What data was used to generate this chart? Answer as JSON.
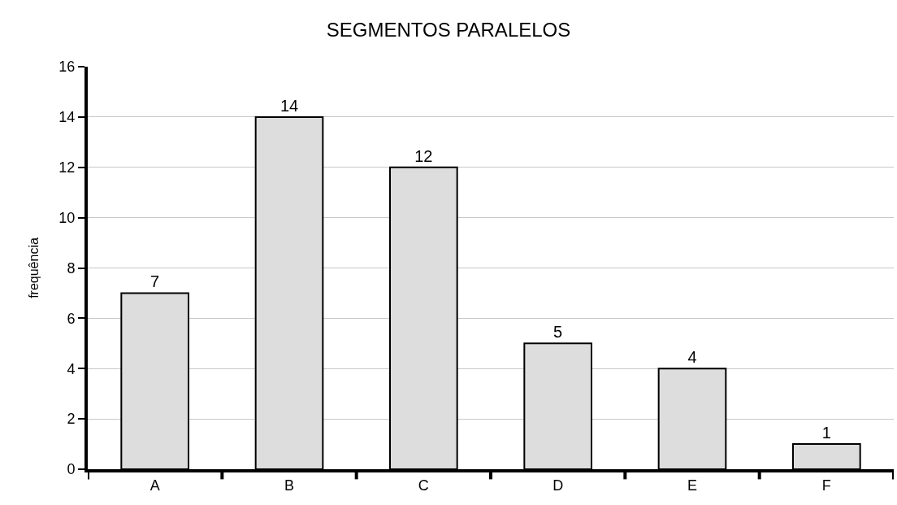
{
  "chart_data": {
    "type": "bar",
    "title": "SEGMENTOS PARALELOS",
    "ylabel": "frequência",
    "categories": [
      "A",
      "B",
      "C",
      "D",
      "E",
      "F"
    ],
    "values": [
      7,
      14,
      12,
      5,
      4,
      1
    ],
    "color": "#dddddd",
    "ylim": [
      0,
      16
    ],
    "yticks": [
      0,
      2,
      4,
      6,
      8,
      10,
      12,
      14,
      16
    ],
    "grid": "y",
    "data_labels": true,
    "legend": false
  }
}
